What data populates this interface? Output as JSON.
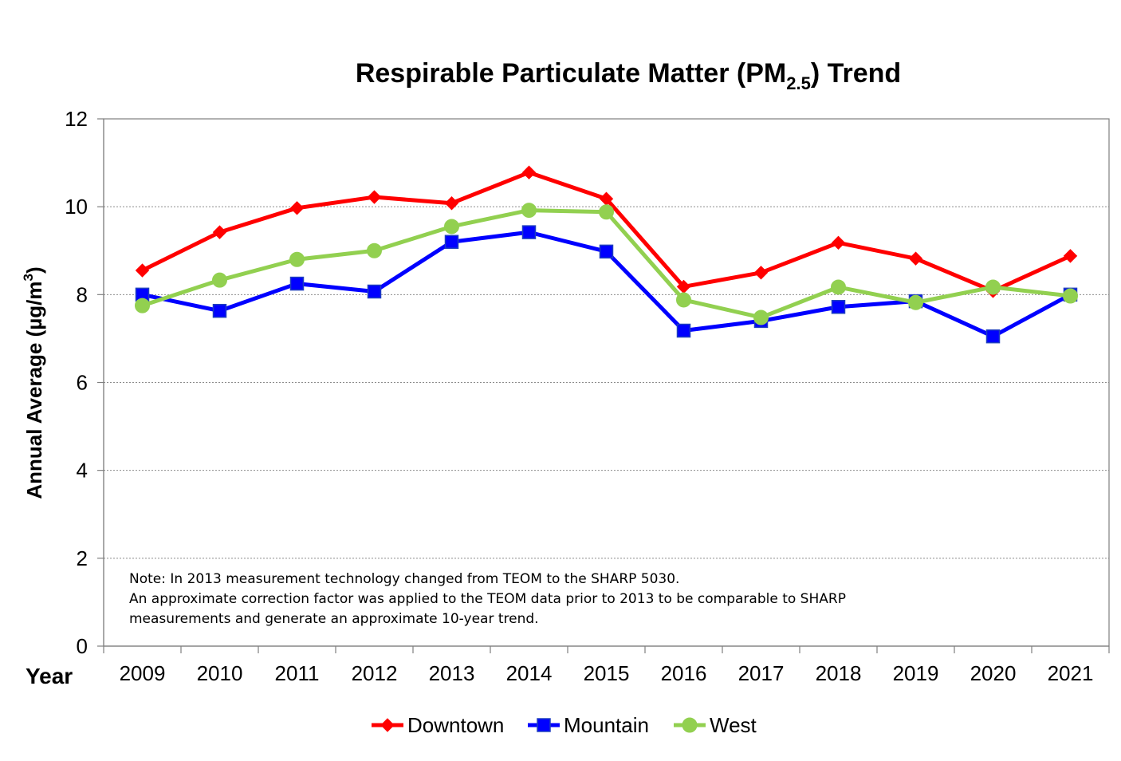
{
  "chart_data": {
    "type": "line",
    "title": "Respirable Particulate Matter (PM2.5) Trend",
    "title_parts": {
      "main": "Respirable Particulate Matter (PM",
      "sub": "2.5",
      "end": ") Trend"
    },
    "xlabel": "Year",
    "ylabel": "Annual Average  (µg/m3)",
    "ylabel_parts": {
      "main": "Annual Average  (µg/m",
      "sup": "3",
      "end": ")"
    },
    "categories": [
      "2009",
      "2010",
      "2011",
      "2012",
      "2013",
      "2014",
      "2015",
      "2016",
      "2017",
      "2018",
      "2019",
      "2020",
      "2021"
    ],
    "ylim": [
      0,
      12
    ],
    "yticks": [
      0,
      2,
      4,
      6,
      8,
      10,
      12
    ],
    "grid": "horizontal dotted",
    "legend_position": "bottom",
    "series": [
      {
        "name": "Downtown",
        "color": "#ff0000",
        "marker": "diamond",
        "values": [
          8.55,
          9.42,
          9.97,
          10.22,
          10.08,
          10.78,
          10.18,
          8.18,
          8.5,
          9.18,
          8.82,
          8.08,
          8.88
        ]
      },
      {
        "name": "Mountain",
        "color": "#0000ff",
        "marker": "square",
        "values": [
          8.0,
          7.63,
          8.25,
          8.07,
          9.2,
          9.42,
          8.98,
          7.18,
          7.4,
          7.72,
          7.85,
          7.05,
          8.0
        ]
      },
      {
        "name": "West",
        "color": "#92d050",
        "marker": "circle",
        "values": [
          7.75,
          8.33,
          8.8,
          9.0,
          9.55,
          9.92,
          9.88,
          7.88,
          7.48,
          8.17,
          7.82,
          8.17,
          7.97
        ]
      }
    ],
    "annotations": [
      "Note: In 2013 measurement technology changed from TEOM to the SHARP 5030.",
      "An approximate correction factor was applied to the TEOM data prior to 2013 to be comparable to SHARP",
      "measurements and generate an approximate 10-year trend."
    ]
  }
}
